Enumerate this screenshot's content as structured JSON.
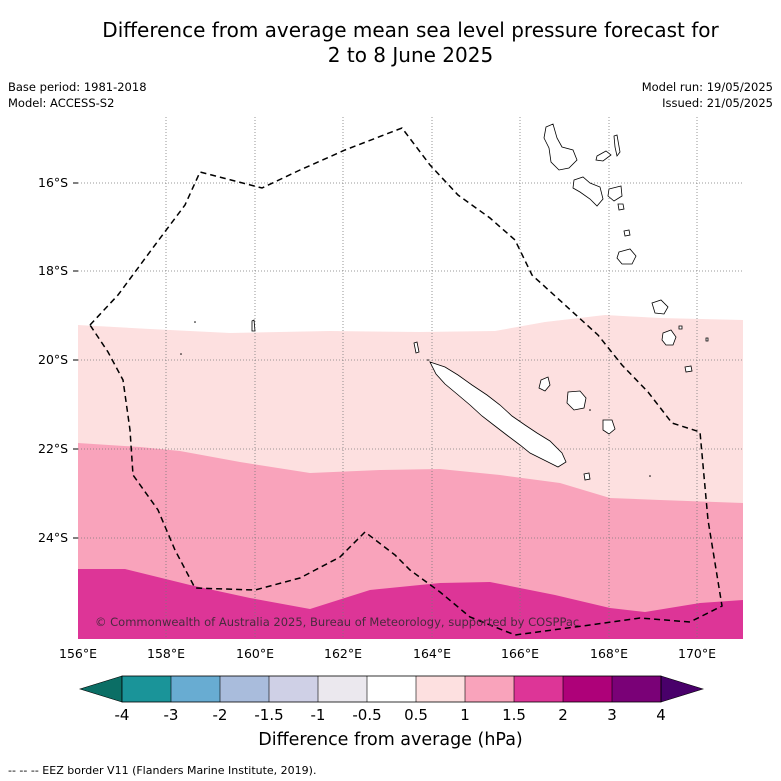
{
  "title_line1": "Difference from average mean sea level pressure forecast for",
  "title_line2": "2 to 8 June 2025",
  "base_period": "Base period: 1981-2018",
  "model": "Model: ACCESS-S2",
  "model_run": "Model run: 19/05/2025",
  "issued": "Issued: 21/05/2025",
  "copyright": "© Commonwealth of Australia 2025, Bureau of Meteorology, supported by COSPPac",
  "footer_legend": "--  --  -- EEZ border V11 (Flanders Marine Institute, 2019).",
  "lat_labels": [
    "16°S",
    "18°S",
    "20°S",
    "22°S",
    "24°S"
  ],
  "lon_labels": [
    "156°E",
    "158°E",
    "160°E",
    "162°E",
    "164°E",
    "166°E",
    "168°E",
    "170°E"
  ],
  "colorbar": {
    "title": "Difference from average (hPa)",
    "tick_labels": [
      "-4",
      "-3",
      "-2",
      "-1.5",
      "-1",
      "-0.5",
      "0.5",
      "1",
      "1.5",
      "2",
      "3",
      "4"
    ],
    "colors": [
      "#0b6e65",
      "#1a9499",
      "#68acd2",
      "#a9bcdc",
      "#cfd0e6",
      "#ebe8ee",
      "#ffffff",
      "#fde0e0",
      "#f9a3bb",
      "#dd3597",
      "#ae0179",
      "#7a0177",
      "#49006a"
    ]
  },
  "chart_data": {
    "type": "heatmap",
    "x_range_degE": [
      156,
      171
    ],
    "y_range_degS": [
      14.8,
      26
    ],
    "contour_bands_hPa": [
      {
        "range": "0.5 to 1",
        "color": "#fde0e0"
      },
      {
        "range": "1 to 1.5",
        "color": "#f9a3bb"
      },
      {
        "range": "1.5 to 2",
        "color": "#dd3597"
      }
    ]
  }
}
